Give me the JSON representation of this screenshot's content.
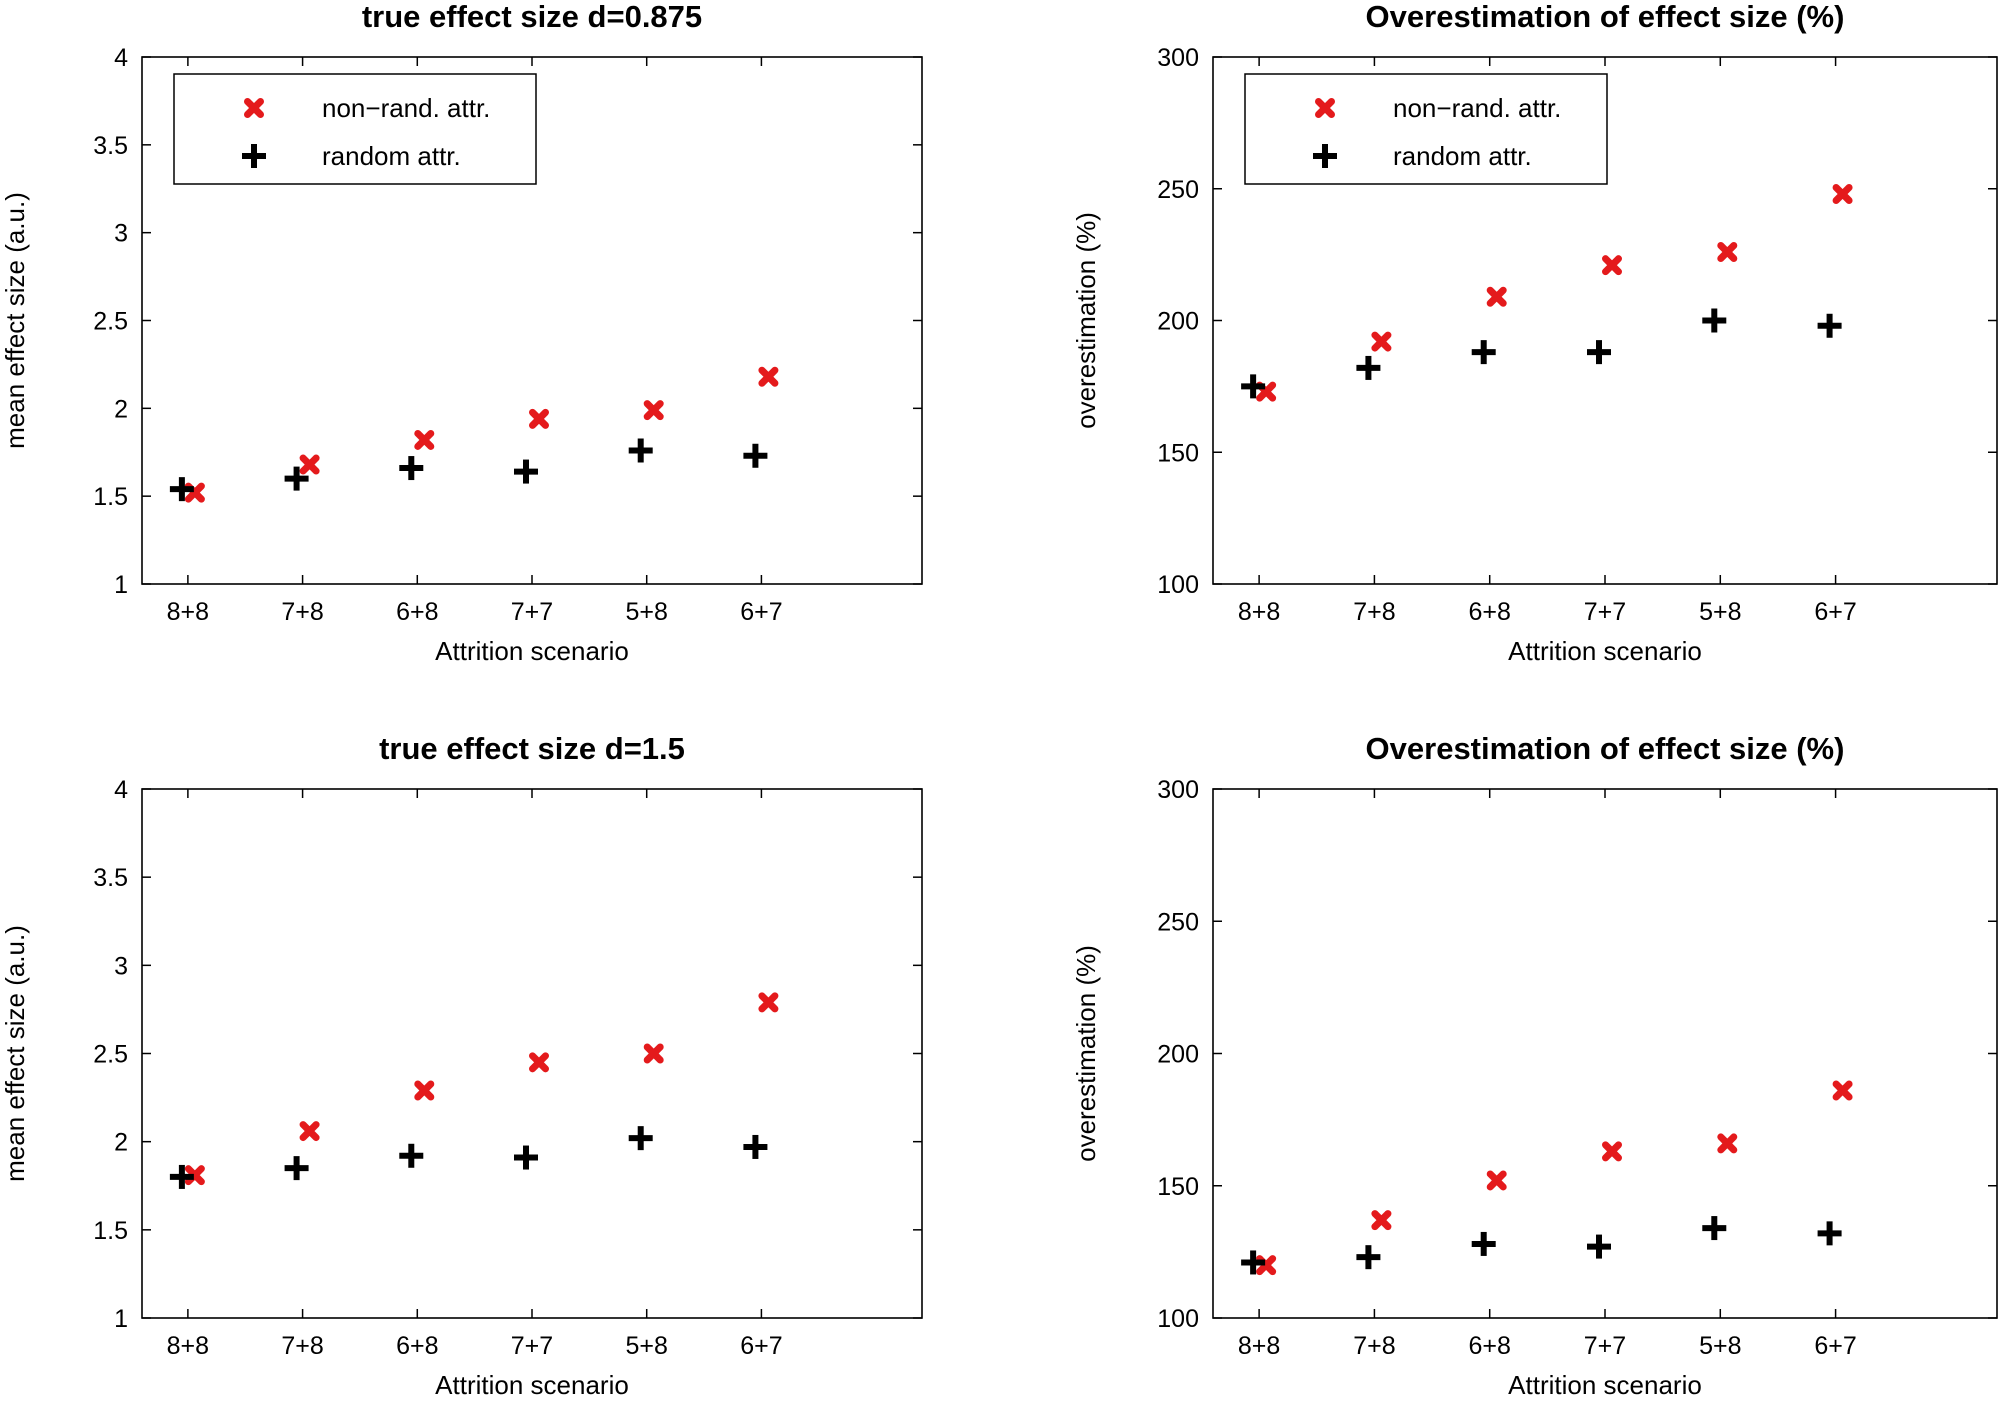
{
  "colors": {
    "nonrandom": "#e41a1c",
    "random": "#000000",
    "axis": "#000000",
    "background": "#ffffff"
  },
  "chart_data": [
    {
      "type": "scatter",
      "title": "true effect size d=0.875",
      "xlabel": "Attrition scenario",
      "ylabel": "mean effect size (a.u.)",
      "categories": [
        "8+8",
        "7+8",
        "6+8",
        "7+7",
        "5+8",
        "6+7"
      ],
      "ylim": [
        1,
        4
      ],
      "yticks": [
        1,
        1.5,
        2,
        2.5,
        3,
        3.5,
        4
      ],
      "yticklabels": [
        "1",
        "1.5",
        "2",
        "2.5",
        "3",
        "3.5",
        "4"
      ],
      "legend": {
        "position": "top-left",
        "entries": [
          "non−rand. attr.",
          "random attr."
        ]
      },
      "series": [
        {
          "name": "non−rand. attr.",
          "marker": "x",
          "color": "#e41a1c",
          "values": [
            1.52,
            1.68,
            1.82,
            1.94,
            1.99,
            2.18
          ]
        },
        {
          "name": "random attr.",
          "marker": "+",
          "color": "#000000",
          "values": [
            1.54,
            1.6,
            1.66,
            1.64,
            1.76,
            1.73
          ]
        }
      ]
    },
    {
      "type": "scatter",
      "title": "Overestimation of effect size (%)",
      "xlabel": "Attrition scenario",
      "ylabel": "overestimation (%)",
      "categories": [
        "8+8",
        "7+8",
        "6+8",
        "7+7",
        "5+8",
        "6+7"
      ],
      "ylim": [
        100,
        300
      ],
      "yticks": [
        100,
        150,
        200,
        250,
        300
      ],
      "yticklabels": [
        "100",
        "150",
        "200",
        "250",
        "300"
      ],
      "legend": {
        "position": "top-left",
        "entries": [
          "non−rand. attr.",
          "random attr."
        ]
      },
      "series": [
        {
          "name": "non−rand. attr.",
          "marker": "x",
          "color": "#e41a1c",
          "values": [
            173,
            192,
            209,
            221,
            226,
            248
          ]
        },
        {
          "name": "random attr.",
          "marker": "+",
          "color": "#000000",
          "values": [
            175,
            182,
            188,
            188,
            200,
            198
          ]
        }
      ]
    },
    {
      "type": "scatter",
      "title": "true effect size d=1.5",
      "xlabel": "Attrition scenario",
      "ylabel": "mean effect size (a.u.)",
      "categories": [
        "8+8",
        "7+8",
        "6+8",
        "7+7",
        "5+8",
        "6+7"
      ],
      "ylim": [
        1,
        4
      ],
      "yticks": [
        1,
        1.5,
        2,
        2.5,
        3,
        3.5,
        4
      ],
      "yticklabels": [
        "1",
        "1.5",
        "2",
        "2.5",
        "3",
        "3.5",
        "4"
      ],
      "series": [
        {
          "name": "non−rand. attr.",
          "marker": "x",
          "color": "#e41a1c",
          "values": [
            1.81,
            2.06,
            2.29,
            2.45,
            2.5,
            2.79
          ]
        },
        {
          "name": "random attr.",
          "marker": "+",
          "color": "#000000",
          "values": [
            1.8,
            1.85,
            1.92,
            1.91,
            2.02,
            1.97
          ]
        }
      ]
    },
    {
      "type": "scatter",
      "title": "Overestimation of effect size (%)",
      "xlabel": "Attrition scenario",
      "ylabel": "overestimation (%)",
      "categories": [
        "8+8",
        "7+8",
        "6+8",
        "7+7",
        "5+8",
        "6+7"
      ],
      "ylim": [
        100,
        300
      ],
      "yticks": [
        100,
        150,
        200,
        250,
        300
      ],
      "yticklabels": [
        "100",
        "150",
        "200",
        "250",
        "300"
      ],
      "series": [
        {
          "name": "non−rand. attr.",
          "marker": "x",
          "color": "#e41a1c",
          "values": [
            120,
            137,
            152,
            163,
            166,
            186
          ]
        },
        {
          "name": "random attr.",
          "marker": "+",
          "color": "#000000",
          "values": [
            121,
            123,
            128,
            127,
            134,
            132
          ]
        }
      ]
    }
  ]
}
